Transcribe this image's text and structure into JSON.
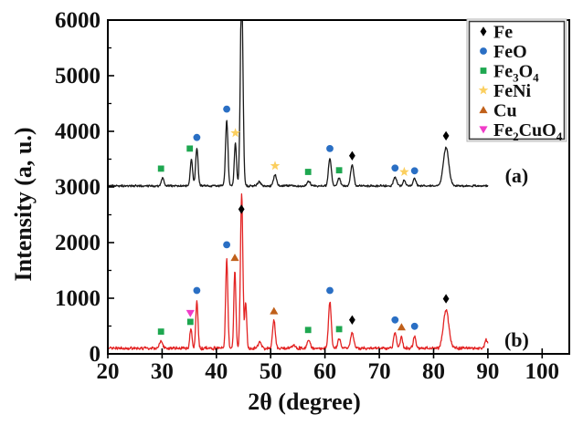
{
  "chart_data": {
    "type": "line",
    "title": "",
    "xlabel": "2θ (degree)",
    "ylabel": "Intensity (a, u.)",
    "xlim": [
      20,
      105
    ],
    "ylim": [
      0,
      6000
    ],
    "x_ticks": [
      20,
      30,
      40,
      50,
      60,
      70,
      80,
      90,
      100
    ],
    "y_ticks": [
      0,
      1000,
      2000,
      3000,
      4000,
      5000,
      6000
    ],
    "y_minor_ticks": [
      500,
      1500,
      2500,
      3500,
      4500,
      5500
    ],
    "grid": false,
    "legend_position": "top-right",
    "series": [
      {
        "id": "a",
        "label": "(a)",
        "color": "#1a1a1a",
        "baseline": 3020,
        "noise": 22,
        "x_range": [
          20,
          90
        ],
        "peaks": [
          [
            30.1,
            140,
            0.25
          ],
          [
            35.4,
            470,
            0.22
          ],
          [
            36.4,
            680,
            0.22
          ],
          [
            41.9,
            1180,
            0.22
          ],
          [
            43.5,
            780,
            0.2
          ],
          [
            44.65,
            3600,
            0.24
          ],
          [
            47.9,
            70,
            0.3
          ],
          [
            50.8,
            190,
            0.28
          ],
          [
            57.0,
            80,
            0.3
          ],
          [
            60.9,
            500,
            0.26
          ],
          [
            62.6,
            140,
            0.26
          ],
          [
            65.0,
            380,
            0.28
          ],
          [
            72.9,
            160,
            0.28
          ],
          [
            74.6,
            100,
            0.25
          ],
          [
            76.5,
            140,
            0.25
          ],
          [
            82.3,
            690,
            0.5
          ]
        ]
      },
      {
        "id": "b",
        "label": "(b)",
        "color": "#e32424",
        "baseline": 100,
        "noise": 34,
        "x_range": [
          20,
          90
        ],
        "peaks": [
          [
            29.8,
            130,
            0.28
          ],
          [
            35.3,
            350,
            0.2
          ],
          [
            36.4,
            870,
            0.2
          ],
          [
            41.9,
            1600,
            0.2
          ],
          [
            43.4,
            1400,
            0.19
          ],
          [
            44.65,
            2770,
            0.22
          ],
          [
            45.4,
            820,
            0.18
          ],
          [
            48.0,
            110,
            0.3
          ],
          [
            50.6,
            500,
            0.25
          ],
          [
            54.2,
            60,
            0.3
          ],
          [
            57.0,
            150,
            0.3
          ],
          [
            60.9,
            830,
            0.25
          ],
          [
            62.6,
            180,
            0.26
          ],
          [
            65.0,
            280,
            0.3
          ],
          [
            72.9,
            290,
            0.25
          ],
          [
            74.1,
            200,
            0.22
          ],
          [
            76.5,
            200,
            0.25
          ],
          [
            82.3,
            690,
            0.5
          ],
          [
            89.7,
            150,
            0.25
          ]
        ]
      }
    ],
    "legend": [
      {
        "id": "Fe",
        "shape": "diamond",
        "color": "#000000",
        "parts": [
          [
            "Fe",
            0
          ]
        ]
      },
      {
        "id": "FeO",
        "shape": "circle",
        "color": "#2a6fc4",
        "parts": [
          [
            "FeO",
            0
          ]
        ]
      },
      {
        "id": "Fe3O4",
        "shape": "square",
        "color": "#1ea750",
        "parts": [
          [
            "Fe",
            0
          ],
          [
            "3",
            1
          ],
          [
            "O",
            0
          ],
          [
            "4",
            1
          ]
        ]
      },
      {
        "id": "FeNi",
        "shape": "star",
        "color": "#fbcf5f",
        "parts": [
          [
            "FeNi",
            0
          ]
        ]
      },
      {
        "id": "Cu",
        "shape": "triangle-up",
        "color": "#c0601a",
        "parts": [
          [
            "Cu",
            0
          ]
        ]
      },
      {
        "id": "Fe2CuO4",
        "shape": "triangle-down",
        "color": "#f03cc8",
        "parts": [
          [
            "Fe",
            0
          ],
          [
            "2",
            1
          ],
          [
            "Cu",
            0
          ],
          [
            "O",
            0
          ],
          [
            "4",
            1
          ]
        ]
      }
    ],
    "markers": [
      {
        "series": "a",
        "phase": "Fe3O4",
        "x": 29.8,
        "y": 3330
      },
      {
        "series": "a",
        "phase": "Fe3O4",
        "x": 35.1,
        "y": 3690
      },
      {
        "series": "a",
        "phase": "FeO",
        "x": 36.4,
        "y": 3890
      },
      {
        "series": "a",
        "phase": "FeO",
        "x": 41.9,
        "y": 4400
      },
      {
        "series": "a",
        "phase": "FeNi",
        "x": 43.5,
        "y": 3970
      },
      {
        "series": "a",
        "phase": "FeNi",
        "x": 50.8,
        "y": 3380
      },
      {
        "series": "a",
        "phase": "Fe3O4",
        "x": 56.9,
        "y": 3270
      },
      {
        "series": "a",
        "phase": "FeO",
        "x": 60.9,
        "y": 3690
      },
      {
        "series": "a",
        "phase": "Fe3O4",
        "x": 62.6,
        "y": 3300
      },
      {
        "series": "a",
        "phase": "Fe",
        "x": 65.0,
        "y": 3560
      },
      {
        "series": "a",
        "phase": "FeO",
        "x": 72.9,
        "y": 3340
      },
      {
        "series": "a",
        "phase": "FeNi",
        "x": 74.6,
        "y": 3270
      },
      {
        "series": "a",
        "phase": "FeO",
        "x": 76.5,
        "y": 3290
      },
      {
        "series": "a",
        "phase": "Fe",
        "x": 82.3,
        "y": 3920
      },
      {
        "series": "b",
        "phase": "Fe3O4",
        "x": 29.8,
        "y": 400
      },
      {
        "series": "b",
        "phase": "Fe2CuO4",
        "x": 35.2,
        "y": 730
      },
      {
        "series": "b",
        "phase": "Fe3O4",
        "x": 35.2,
        "y": 575
      },
      {
        "series": "b",
        "phase": "FeO",
        "x": 36.4,
        "y": 1140
      },
      {
        "series": "b",
        "phase": "FeO",
        "x": 41.9,
        "y": 1960
      },
      {
        "series": "b",
        "phase": "Cu",
        "x": 43.4,
        "y": 1730
      },
      {
        "series": "b",
        "phase": "Fe",
        "x": 44.6,
        "y": 2600
      },
      {
        "series": "b",
        "phase": "Cu",
        "x": 50.6,
        "y": 770
      },
      {
        "series": "b",
        "phase": "Fe3O4",
        "x": 56.9,
        "y": 430
      },
      {
        "series": "b",
        "phase": "FeO",
        "x": 60.9,
        "y": 1140
      },
      {
        "series": "b",
        "phase": "Fe3O4",
        "x": 62.6,
        "y": 445
      },
      {
        "series": "b",
        "phase": "Fe",
        "x": 65.0,
        "y": 610
      },
      {
        "series": "b",
        "phase": "FeO",
        "x": 72.9,
        "y": 610
      },
      {
        "series": "b",
        "phase": "Cu",
        "x": 74.1,
        "y": 480
      },
      {
        "series": "b",
        "phase": "FeO",
        "x": 76.5,
        "y": 495
      },
      {
        "series": "b",
        "phase": "Fe",
        "x": 82.3,
        "y": 990
      }
    ],
    "annotations": [
      {
        "text": "(a)",
        "x": 95.3,
        "y": 3080
      },
      {
        "text": "(b)",
        "x": 95.3,
        "y": 130
      }
    ]
  }
}
